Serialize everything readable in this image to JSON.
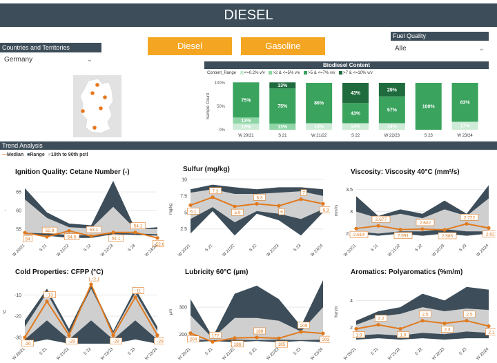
{
  "header": {
    "title": "DIESEL"
  },
  "countries": {
    "label": "Countries and Territories",
    "selected": "Germany"
  },
  "fuel_buttons": {
    "diesel": "Diesel",
    "gasoline": "Gasoline"
  },
  "fuel_quality": {
    "label": "Fuel Quality",
    "selected": "Alle"
  },
  "biodiesel": {
    "title": "Biodiesel Content",
    "legend_title": "Content_Range",
    "legend": [
      {
        "label": "<=0.2% v/v",
        "color": "#cdebd6"
      },
      {
        "label": ">2 & <=5% v/v",
        "color": "#8fd5a6"
      },
      {
        "label": ">5 & <=7% v/v",
        "color": "#3aa35e"
      },
      {
        "label": ">7 & <=10% v/v",
        "color": "#1f6b3e"
      }
    ]
  },
  "trend": {
    "title": "Trend Analysis",
    "legend": [
      {
        "label": "Median",
        "color": "#e07a1f"
      },
      {
        "label": "Range",
        "color": "#3d4e5a"
      },
      {
        "label": "10th to 90th pctl",
        "color": "#cfcfcf"
      }
    ]
  },
  "chart_data": [
    {
      "type": "bar",
      "stacked": true,
      "title": "Biodiesel Content",
      "ylabel": "Sample Count",
      "yticks": [
        "100%",
        "50%",
        "0%"
      ],
      "categories": [
        "W 20/21",
        "S 21",
        "W 21/22",
        "S 22",
        "W 22/23",
        "S 23",
        "W 23/24"
      ],
      "series": [
        {
          "name": "<=0.2% v/v",
          "color": "#cdebd6",
          "values": [
            13,
            0,
            14,
            14,
            14,
            0,
            17
          ],
          "labels": [
            "13%",
            "",
            "14%",
            "14%",
            "14%",
            "",
            "17%"
          ]
        },
        {
          "name": ">2 & <=5% v/v",
          "color": "#8fd5a6",
          "values": [
            13,
            13,
            0,
            0,
            0,
            0,
            0
          ],
          "labels": [
            "13%",
            "13%",
            "",
            "",
            "",
            "",
            ""
          ]
        },
        {
          "name": ">5 & <=7% v/v",
          "color": "#3aa35e",
          "values": [
            75,
            75,
            86,
            43,
            57,
            100,
            83
          ],
          "labels": [
            "75%",
            "75%",
            "86%",
            "43%",
            "57%",
            "100%",
            "83%"
          ]
        },
        {
          "name": ">7 & <=10% v/v",
          "color": "#1f6b3e",
          "values": [
            0,
            13,
            0,
            43,
            29,
            0,
            0
          ],
          "labels": [
            "",
            "13%",
            "",
            "43%",
            "29%",
            "",
            ""
          ]
        }
      ]
    },
    {
      "type": "line",
      "title": "Ignition Quality: Cetane Number (-)",
      "ylabel": "-",
      "yticks": [
        55,
        60,
        65
      ],
      "ylim": [
        52,
        68
      ],
      "x": [
        "W 20/21",
        "S 21",
        "W 21/22",
        "S 22",
        "W 22/23",
        "S 23",
        "W 23/24"
      ],
      "range_low": [
        53.6,
        53.2,
        52.6,
        52.6,
        53.6,
        53.4,
        53.2
      ],
      "range_high": [
        66,
        59.5,
        56.5,
        56,
        68,
        55,
        55.5
      ],
      "p10": [
        54,
        53.8,
        53.4,
        53.3,
        54,
        53.8,
        53.6
      ],
      "p90": [
        63,
        58,
        55.5,
        55.2,
        61,
        55,
        55
      ],
      "median": [
        54,
        52.9,
        54.5,
        53.1,
        54.1,
        54.1,
        52.6
      ],
      "labels": [
        "54",
        "52.9",
        "54.5",
        "53.1",
        "54.1",
        "54.1",
        "52.6"
      ]
    },
    {
      "type": "line",
      "title": "Sulfur (mg/kg)",
      "ylabel": "mg/kg",
      "yticks": [
        2.5,
        5.0,
        7.5,
        10.0
      ],
      "ylim": [
        0.8,
        10.2
      ],
      "x": [
        "W 20/21",
        "S 21",
        "W 21/22",
        "S 22",
        "W 22/23",
        "S 23",
        "W 23/24"
      ],
      "range_low": [
        1.8,
        5.2,
        1.5,
        4.8,
        3.8,
        1.5,
        5.0
      ],
      "range_high": [
        8.5,
        9.2,
        8.8,
        8.5,
        8.8,
        8.8,
        8.5
      ],
      "p10": [
        4.0,
        5.8,
        3.5,
        5.2,
        4.8,
        4.0,
        5.5
      ],
      "p90": [
        8.0,
        8.5,
        7.8,
        7.8,
        8.0,
        8.2,
        7.5
      ],
      "median": [
        6.1,
        7.3,
        5.9,
        6.3,
        6.0,
        7.0,
        6.3
      ],
      "labels": [
        "6.1",
        "7.3",
        "5.9",
        "6.3",
        "6",
        "7",
        "6.3"
      ]
    },
    {
      "type": "line",
      "title": "Viscosity: Viscosity 40°C (mm²/s)",
      "ylabel": "mm²/s",
      "yticks": [
        2.5,
        3.0,
        3.5
      ],
      "ylim": [
        2.35,
        3.7
      ],
      "x": [
        "W 20/21",
        "S 21",
        "W 21/22",
        "S 22",
        "W 22/23",
        "S 23",
        "W 23/24"
      ],
      "range_low": [
        2.5,
        2.45,
        2.5,
        2.45,
        2.5,
        2.45,
        2.5
      ],
      "range_high": [
        3.35,
        2.9,
        3.05,
        2.95,
        3.25,
        2.95,
        3.6
      ],
      "p10": [
        2.55,
        2.5,
        2.55,
        2.55,
        2.6,
        2.55,
        2.55
      ],
      "p90": [
        3.0,
        2.85,
        2.95,
        2.85,
        3.05,
        2.9,
        3.3
      ],
      "median": [
        2.614,
        2.677,
        2.591,
        2.602,
        2.585,
        2.722,
        2.627
      ],
      "labels": [
        "2.614",
        "2.677",
        "2.591",
        "2.602",
        "2.585",
        "2.722",
        "2.627"
      ]
    },
    {
      "type": "line",
      "title": "Cold Properties: CFPP (°C)",
      "ylabel": "°C",
      "yticks": [
        -30,
        -20,
        -10
      ],
      "ylim": [
        -33,
        -3
      ],
      "x": [
        "W 20/21",
        "S 21",
        "W 21/22",
        "S 22",
        "W 22/23",
        "S 23",
        "W 23/24"
      ],
      "range_low": [
        -33,
        -31,
        -33,
        -33,
        -33,
        -31,
        -33
      ],
      "range_high": [
        -22,
        -7,
        -26,
        -5,
        -27,
        -7,
        -25
      ],
      "p10": [
        -31,
        -22,
        -31,
        -22,
        -31,
        -22,
        -31
      ],
      "p90": [
        -25,
        -9,
        -28,
        -7,
        -28,
        -9,
        -27
      ],
      "median": [
        -30,
        -13,
        -29,
        -5,
        -29,
        -11,
        -29
      ],
      "labels": [
        "-30",
        "-13",
        "-29",
        "-5",
        "-29",
        "-11",
        "-29"
      ]
    },
    {
      "type": "line",
      "title": "Lubricity 60°C (µm)",
      "ylabel": "µm",
      "yticks": [
        200,
        300
      ],
      "ylim": [
        165,
        400
      ],
      "x": [
        "W 20/21",
        "S 21",
        "W 21/22",
        "S 22",
        "W 22/23",
        "S 23",
        "W 23/24"
      ],
      "range_low": [
        170,
        175,
        170,
        175,
        170,
        175,
        170
      ],
      "range_high": [
        330,
        190,
        350,
        380,
        330,
        230,
        400
      ],
      "p10": [
        180,
        178,
        180,
        178,
        180,
        178,
        180
      ],
      "p90": [
        270,
        185,
        260,
        260,
        250,
        210,
        300
      ],
      "median": [
        204,
        172,
        186,
        188,
        185,
        209,
        203
      ],
      "labels": [
        "204",
        "172",
        "186",
        "188",
        "185",
        "209",
        "203"
      ]
    },
    {
      "type": "line",
      "title": "Aromatics: Polyaromatics (%m/m)",
      "ylabel": "%m/m",
      "yticks": [
        2,
        4
      ],
      "ylim": [
        0.8,
        5.5
      ],
      "x": [
        "W 20/21",
        "S 21",
        "W 21/22",
        "S 22",
        "W 22/23",
        "S 23",
        "W 23/24"
      ],
      "range_low": [
        1.1,
        1.2,
        1.1,
        1.2,
        1.1,
        1.2,
        1.2
      ],
      "range_high": [
        2.5,
        3.2,
        3.5,
        4.5,
        4.0,
        5.0,
        4.8
      ],
      "p10": [
        1.4,
        1.5,
        1.4,
        1.6,
        1.5,
        1.7,
        1.6
      ],
      "p90": [
        2.2,
        2.8,
        3.0,
        3.5,
        3.2,
        3.4,
        3.3
      ],
      "median": [
        1.9,
        2.2,
        1.9,
        2.5,
        2.3,
        2.5,
        2.1
      ],
      "labels": [
        "1.9",
        "2.2",
        "1.9",
        "2.5",
        "2.3",
        "2.5",
        "2.1"
      ]
    }
  ]
}
